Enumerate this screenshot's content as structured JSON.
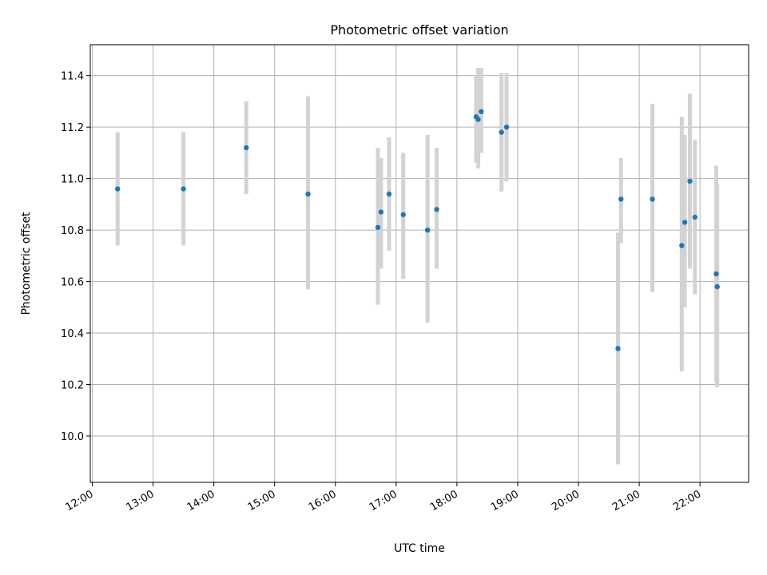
{
  "chart_data": {
    "type": "scatter",
    "title": "Photometric offset variation",
    "xlabel": "UTC time",
    "ylabel": "Photometric offset",
    "xlim": [
      "11:58",
      "22:48"
    ],
    "ylim": [
      9.82,
      11.52
    ],
    "grid": true,
    "x_ticks": [
      "12:00",
      "13:00",
      "14:00",
      "15:00",
      "16:00",
      "17:00",
      "18:00",
      "19:00",
      "20:00",
      "21:00",
      "22:00"
    ],
    "y_ticks": [
      10.0,
      10.2,
      10.4,
      10.6,
      10.8,
      11.0,
      11.2,
      11.4
    ],
    "y_tick_labels": [
      "10.0",
      "10.2",
      "10.4",
      "10.6",
      "10.8",
      "11.0",
      "11.2",
      "11.4"
    ],
    "series": [
      {
        "marker_color": "#1f77b4",
        "errorbar_color": "#d3d3d3",
        "points": [
          {
            "t": "12:25",
            "y": 10.96,
            "ymin": 10.74,
            "ymax": 11.18
          },
          {
            "t": "13:30",
            "y": 10.96,
            "ymin": 10.74,
            "ymax": 11.18
          },
          {
            "t": "14:32",
            "y": 11.12,
            "ymin": 10.94,
            "ymax": 11.3
          },
          {
            "t": "15:33",
            "y": 10.94,
            "ymin": 10.57,
            "ymax": 11.32
          },
          {
            "t": "16:42",
            "y": 10.81,
            "ymin": 10.51,
            "ymax": 11.12
          },
          {
            "t": "16:45",
            "y": 10.87,
            "ymin": 10.65,
            "ymax": 11.08
          },
          {
            "t": "16:53",
            "y": 10.94,
            "ymin": 10.72,
            "ymax": 11.16
          },
          {
            "t": "17:07",
            "y": 10.86,
            "ymin": 10.61,
            "ymax": 11.1
          },
          {
            "t": "17:31",
            "y": 10.8,
            "ymin": 10.44,
            "ymax": 11.17
          },
          {
            "t": "17:40",
            "y": 10.88,
            "ymin": 10.65,
            "ymax": 11.12
          },
          {
            "t": "18:19",
            "y": 11.24,
            "ymin": 11.06,
            "ymax": 11.4
          },
          {
            "t": "18:21",
            "y": 11.23,
            "ymin": 11.04,
            "ymax": 11.43
          },
          {
            "t": "18:24",
            "y": 11.26,
            "ymin": 11.1,
            "ymax": 11.43
          },
          {
            "t": "18:44",
            "y": 11.18,
            "ymin": 10.95,
            "ymax": 11.41
          },
          {
            "t": "18:49",
            "y": 11.2,
            "ymin": 10.99,
            "ymax": 11.41
          },
          {
            "t": "20:39",
            "y": 10.34,
            "ymin": 9.89,
            "ymax": 10.79
          },
          {
            "t": "20:42",
            "y": 10.92,
            "ymin": 10.75,
            "ymax": 11.08
          },
          {
            "t": "21:13",
            "y": 10.92,
            "ymin": 10.56,
            "ymax": 11.29
          },
          {
            "t": "21:42",
            "y": 10.74,
            "ymin": 10.25,
            "ymax": 11.24
          },
          {
            "t": "21:45",
            "y": 10.83,
            "ymin": 10.5,
            "ymax": 11.17
          },
          {
            "t": "21:50",
            "y": 10.99,
            "ymin": 10.65,
            "ymax": 11.33
          },
          {
            "t": "21:55",
            "y": 10.85,
            "ymin": 10.55,
            "ymax": 11.15
          },
          {
            "t": "22:16",
            "y": 10.63,
            "ymin": 10.21,
            "ymax": 11.05
          },
          {
            "t": "22:17",
            "y": 10.58,
            "ymin": 10.19,
            "ymax": 10.98
          }
        ]
      }
    ]
  }
}
